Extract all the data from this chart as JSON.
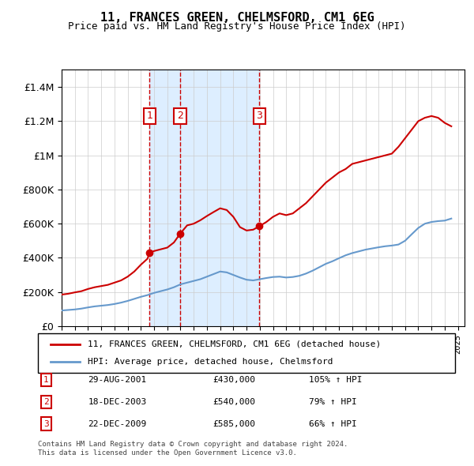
{
  "title": "11, FRANCES GREEN, CHELMSFORD, CM1 6EG",
  "subtitle": "Price paid vs. HM Land Registry's House Price Index (HPI)",
  "legend_red": "11, FRANCES GREEN, CHELMSFORD, CM1 6EG (detached house)",
  "legend_blue": "HPI: Average price, detached house, Chelmsford",
  "footer1": "Contains HM Land Registry data © Crown copyright and database right 2024.",
  "footer2": "This data is licensed under the Open Government Licence v3.0.",
  "sales": [
    {
      "num": 1,
      "date": "29-AUG-2001",
      "price": "£430,000",
      "pct": "105% ↑ HPI",
      "year": 2001.66
    },
    {
      "num": 2,
      "date": "18-DEC-2003",
      "price": "£540,000",
      "pct": "79% ↑ HPI",
      "year": 2003.96
    },
    {
      "num": 3,
      "date": "22-DEC-2009",
      "price": "£585,000",
      "pct": "66% ↑ HPI",
      "year": 2009.97
    }
  ],
  "red_color": "#cc0000",
  "blue_color": "#6699cc",
  "shade_color": "#ddeeff",
  "marker_box_color": "#cc0000",
  "ylim": [
    0,
    1500000
  ],
  "xlim_start": 1995.0,
  "xlim_end": 2025.5,
  "red_x": [
    1995.0,
    1995.5,
    1996.0,
    1996.5,
    1997.0,
    1997.5,
    1998.0,
    1998.5,
    1999.0,
    1999.5,
    2000.0,
    2000.5,
    2001.0,
    2001.5,
    2001.66,
    2002.0,
    2002.5,
    2003.0,
    2003.5,
    2003.96,
    2004.5,
    2005.0,
    2005.5,
    2006.0,
    2006.5,
    2007.0,
    2007.5,
    2008.0,
    2008.5,
    2009.0,
    2009.5,
    2009.97,
    2010.5,
    2011.0,
    2011.5,
    2012.0,
    2012.5,
    2013.0,
    2013.5,
    2014.0,
    2014.5,
    2015.0,
    2015.5,
    2016.0,
    2016.5,
    2017.0,
    2017.5,
    2018.0,
    2018.5,
    2019.0,
    2019.5,
    2020.0,
    2020.5,
    2021.0,
    2021.5,
    2022.0,
    2022.5,
    2023.0,
    2023.5,
    2024.0,
    2024.5
  ],
  "red_y": [
    185000,
    190000,
    198000,
    205000,
    218000,
    228000,
    235000,
    242000,
    255000,
    268000,
    290000,
    320000,
    360000,
    395000,
    430000,
    440000,
    450000,
    460000,
    490000,
    540000,
    590000,
    600000,
    620000,
    645000,
    668000,
    690000,
    680000,
    640000,
    580000,
    560000,
    565000,
    585000,
    610000,
    640000,
    660000,
    650000,
    660000,
    690000,
    720000,
    760000,
    800000,
    840000,
    870000,
    900000,
    920000,
    950000,
    960000,
    970000,
    980000,
    990000,
    1000000,
    1010000,
    1050000,
    1100000,
    1150000,
    1200000,
    1220000,
    1230000,
    1220000,
    1190000,
    1170000
  ],
  "blue_x": [
    1995.0,
    1995.5,
    1996.0,
    1996.5,
    1997.0,
    1997.5,
    1998.0,
    1998.5,
    1999.0,
    1999.5,
    2000.0,
    2000.5,
    2001.0,
    2001.5,
    2002.0,
    2002.5,
    2003.0,
    2003.5,
    2004.0,
    2004.5,
    2005.0,
    2005.5,
    2006.0,
    2006.5,
    2007.0,
    2007.5,
    2008.0,
    2008.5,
    2009.0,
    2009.5,
    2010.0,
    2010.5,
    2011.0,
    2011.5,
    2012.0,
    2012.5,
    2013.0,
    2013.5,
    2014.0,
    2014.5,
    2015.0,
    2015.5,
    2016.0,
    2016.5,
    2017.0,
    2017.5,
    2018.0,
    2018.5,
    2019.0,
    2019.5,
    2020.0,
    2020.5,
    2021.0,
    2021.5,
    2022.0,
    2022.5,
    2023.0,
    2023.5,
    2024.0,
    2024.5
  ],
  "blue_y": [
    92000,
    95000,
    98000,
    103000,
    110000,
    116000,
    120000,
    124000,
    130000,
    138000,
    148000,
    160000,
    172000,
    182000,
    195000,
    205000,
    215000,
    228000,
    245000,
    255000,
    265000,
    275000,
    290000,
    305000,
    320000,
    315000,
    300000,
    285000,
    272000,
    268000,
    275000,
    282000,
    288000,
    290000,
    285000,
    288000,
    295000,
    308000,
    325000,
    345000,
    365000,
    380000,
    398000,
    415000,
    428000,
    438000,
    448000,
    455000,
    462000,
    468000,
    472000,
    478000,
    500000,
    538000,
    575000,
    600000,
    610000,
    615000,
    618000,
    630000
  ]
}
